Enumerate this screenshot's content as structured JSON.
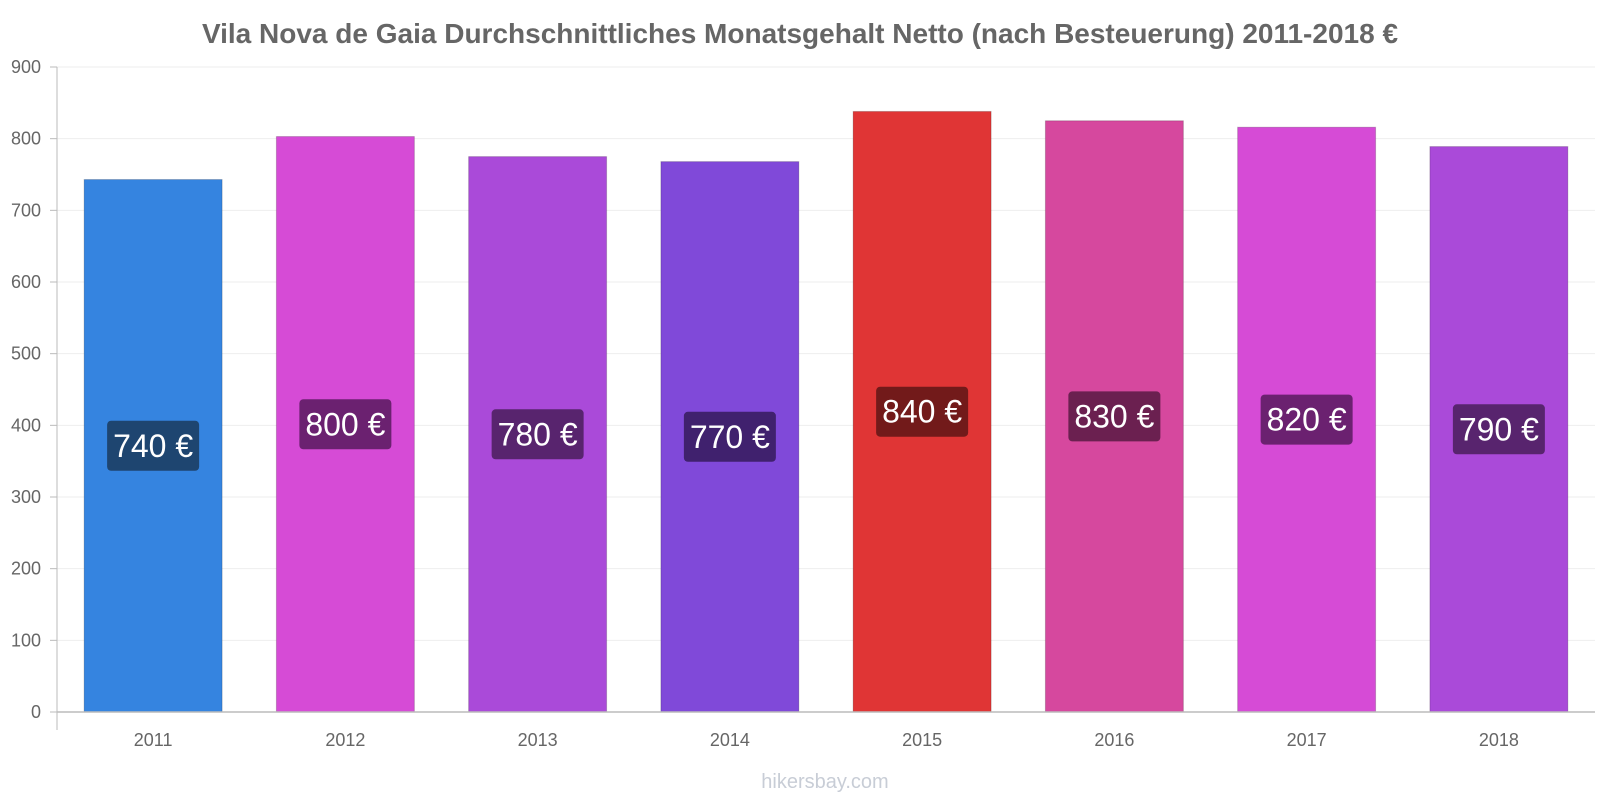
{
  "chart_data": {
    "type": "bar",
    "title": "Vila Nova de Gaia Durchschnittliches Monatsgehalt Netto (nach Besteuerung) 2011-2018 €",
    "categories": [
      "2011",
      "2012",
      "2013",
      "2014",
      "2015",
      "2016",
      "2017",
      "2018"
    ],
    "values": [
      743,
      803,
      775,
      768,
      838,
      825,
      816,
      789
    ],
    "data_labels": [
      "740 €",
      "800 €",
      "780 €",
      "770 €",
      "840 €",
      "830 €",
      "820 €",
      "790 €"
    ],
    "colors": [
      "#3584e0",
      "#d64bd6",
      "#aa4ad9",
      "#8049d9",
      "#e03535",
      "#d6489e",
      "#d64bd6",
      "#aa4ad9"
    ],
    "label_bg_colors": [
      "#1e4570",
      "#6b2170",
      "#58246e",
      "#40216e",
      "#721a1a",
      "#6b2050",
      "#6b2170",
      "#58246e"
    ],
    "yticks": [
      "0",
      "100",
      "200",
      "300",
      "400",
      "500",
      "600",
      "700",
      "800",
      "900"
    ],
    "ylim": [
      0,
      900
    ],
    "xlabel": "",
    "ylabel": "",
    "grid": true
  },
  "watermark": "hikersbay.com",
  "colors": {
    "axis": "#bbbbbb",
    "grid": "#eeeeee",
    "text": "#666666"
  }
}
